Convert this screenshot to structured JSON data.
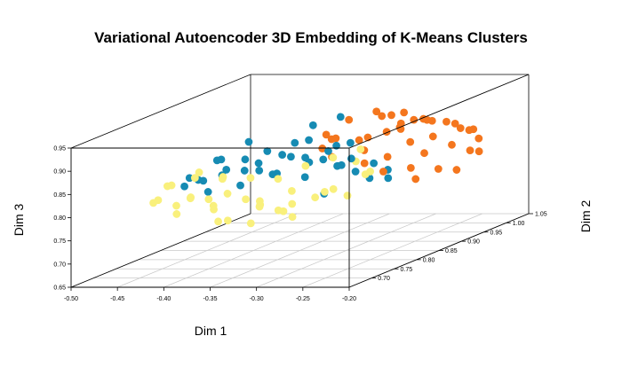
{
  "chart_data": {
    "type": "scatter",
    "title": "Variational Autoencoder 3D Embedding of K-Means Clusters",
    "xlabel": "Dim 1",
    "ylabel": "Dim 2",
    "zlabel": "Dim 3",
    "xlim": [
      -0.5,
      -0.2
    ],
    "ylim": [
      0.65,
      1.05
    ],
    "zlim": [
      0.65,
      0.95
    ],
    "x_ticks": [
      "-0.50",
      "-0.45",
      "-0.40",
      "-0.35",
      "-0.30",
      "-0.25",
      "-0.20"
    ],
    "y_ticks": [
      "0.70",
      "0.75",
      "0.80",
      "0.85",
      "0.90",
      "0.95",
      "1.00",
      "1.05"
    ],
    "z_ticks": [
      "0.65",
      "0.70",
      "0.75",
      "0.80",
      "0.85",
      "0.90",
      "0.95"
    ],
    "grid": true,
    "series": [
      {
        "color": "#F9F07C",
        "points": [
          [
            -0.45,
            0.73,
            0.8
          ],
          [
            -0.44,
            0.72,
            0.81
          ],
          [
            -0.43,
            0.74,
            0.79
          ],
          [
            -0.42,
            0.72,
            0.78
          ],
          [
            -0.41,
            0.73,
            0.81
          ],
          [
            -0.4,
            0.75,
            0.8
          ],
          [
            -0.39,
            0.74,
            0.79
          ],
          [
            -0.38,
            0.72,
            0.79
          ],
          [
            -0.37,
            0.73,
            0.82
          ],
          [
            -0.36,
            0.75,
            0.8
          ],
          [
            -0.35,
            0.76,
            0.78
          ],
          [
            -0.34,
            0.74,
            0.8
          ],
          [
            -0.33,
            0.72,
            0.8
          ],
          [
            -0.32,
            0.77,
            0.81
          ],
          [
            -0.31,
            0.75,
            0.79
          ],
          [
            -0.3,
            0.73,
            0.77
          ],
          [
            -0.29,
            0.76,
            0.8
          ],
          [
            -0.28,
            0.78,
            0.81
          ],
          [
            -0.27,
            0.74,
            0.82
          ],
          [
            -0.26,
            0.77,
            0.8
          ],
          [
            -0.43,
            0.72,
            0.84
          ],
          [
            -0.41,
            0.74,
            0.85
          ],
          [
            -0.39,
            0.76,
            0.84
          ],
          [
            -0.37,
            0.72,
            0.86
          ],
          [
            -0.35,
            0.74,
            0.85
          ],
          [
            -0.33,
            0.76,
            0.84
          ],
          [
            -0.31,
            0.78,
            0.86
          ],
          [
            -0.29,
            0.8,
            0.87
          ],
          [
            -0.27,
            0.82,
            0.88
          ],
          [
            -0.25,
            0.8,
            0.84
          ],
          [
            -0.38,
            0.73,
            0.76
          ],
          [
            -0.36,
            0.71,
            0.77
          ],
          [
            -0.34,
            0.72,
            0.76
          ],
          [
            -0.32,
            0.74,
            0.78
          ],
          [
            -0.3,
            0.71,
            0.79
          ],
          [
            -0.4,
            0.71,
            0.82
          ],
          [
            -0.44,
            0.75,
            0.83
          ],
          [
            -0.42,
            0.77,
            0.85
          ],
          [
            -0.28,
            0.83,
            0.85
          ],
          [
            -0.26,
            0.81,
            0.83
          ]
        ]
      },
      {
        "color": "#F4761E",
        "points": [
          [
            -0.34,
            0.9,
            0.87
          ],
          [
            -0.32,
            0.92,
            0.86
          ],
          [
            -0.3,
            0.94,
            0.87
          ],
          [
            -0.28,
            0.93,
            0.88
          ],
          [
            -0.26,
            0.91,
            0.86
          ],
          [
            -0.24,
            0.9,
            0.84
          ],
          [
            -0.22,
            0.92,
            0.85
          ],
          [
            -0.21,
            0.94,
            0.83
          ],
          [
            -0.23,
            0.96,
            0.87
          ],
          [
            -0.25,
            0.97,
            0.88
          ],
          [
            -0.27,
            0.96,
            0.89
          ],
          [
            -0.29,
            0.98,
            0.88
          ],
          [
            -0.31,
            0.99,
            0.86
          ],
          [
            -0.33,
            0.96,
            0.85
          ],
          [
            -0.35,
            0.93,
            0.86
          ],
          [
            -0.3,
            0.89,
            0.85
          ],
          [
            -0.27,
            0.88,
            0.84
          ],
          [
            -0.24,
            0.87,
            0.82
          ],
          [
            -0.22,
            0.89,
            0.81
          ],
          [
            -0.21,
            0.91,
            0.8
          ],
          [
            -0.28,
            1.0,
            0.87
          ],
          [
            -0.26,
            1.01,
            0.86
          ],
          [
            -0.24,
            1.0,
            0.85
          ],
          [
            -0.22,
            0.98,
            0.84
          ],
          [
            -0.32,
            1.02,
            0.88
          ],
          [
            -0.34,
            1.0,
            0.89
          ],
          [
            -0.36,
            0.98,
            0.88
          ],
          [
            -0.31,
            0.95,
            0.9
          ],
          [
            -0.29,
            0.93,
            0.91
          ],
          [
            -0.27,
            0.91,
            0.9
          ],
          [
            -0.25,
            0.94,
            0.86
          ],
          [
            -0.23,
            0.86,
            0.8
          ],
          [
            -0.26,
            0.85,
            0.82
          ],
          [
            -0.29,
            0.87,
            0.83
          ],
          [
            -0.33,
            0.88,
            0.84
          ],
          [
            -0.35,
            0.9,
            0.85
          ],
          [
            -0.37,
            0.95,
            0.86
          ],
          [
            -0.3,
            1.03,
            0.86
          ],
          [
            -0.25,
            1.03,
            0.84
          ],
          [
            -0.21,
            0.96,
            0.82
          ]
        ]
      },
      {
        "color": "#168BB3",
        "points": [
          [
            -0.46,
            0.82,
            0.8
          ],
          [
            -0.45,
            0.83,
            0.81
          ],
          [
            -0.43,
            0.8,
            0.82
          ],
          [
            -0.42,
            0.79,
            0.8
          ],
          [
            -0.41,
            0.81,
            0.84
          ],
          [
            -0.4,
            0.83,
            0.83
          ],
          [
            -0.39,
            0.8,
            0.81
          ],
          [
            -0.38,
            0.82,
            0.85
          ],
          [
            -0.37,
            0.84,
            0.82
          ],
          [
            -0.36,
            0.81,
            0.83
          ],
          [
            -0.35,
            0.83,
            0.86
          ],
          [
            -0.34,
            0.85,
            0.84
          ],
          [
            -0.33,
            0.82,
            0.82
          ],
          [
            -0.32,
            0.84,
            0.85
          ],
          [
            -0.31,
            0.86,
            0.83
          ],
          [
            -0.3,
            0.83,
            0.84
          ],
          [
            -0.29,
            0.85,
            0.82
          ],
          [
            -0.28,
            0.87,
            0.83
          ],
          [
            -0.27,
            0.84,
            0.81
          ],
          [
            -0.26,
            0.86,
            0.82
          ],
          [
            -0.44,
            0.79,
            0.83
          ],
          [
            -0.42,
            0.81,
            0.86
          ],
          [
            -0.4,
            0.78,
            0.84
          ],
          [
            -0.38,
            0.79,
            0.87
          ],
          [
            -0.36,
            0.78,
            0.85
          ],
          [
            -0.34,
            0.79,
            0.88
          ],
          [
            -0.32,
            0.8,
            0.87
          ],
          [
            -0.3,
            0.81,
            0.88
          ],
          [
            -0.28,
            0.82,
            0.86
          ],
          [
            -0.25,
            0.84,
            0.81
          ],
          [
            -0.39,
            0.86,
            0.86
          ],
          [
            -0.37,
            0.88,
            0.87
          ],
          [
            -0.35,
            0.87,
            0.88
          ],
          [
            -0.33,
            0.89,
            0.86
          ],
          [
            -0.31,
            0.88,
            0.87
          ],
          [
            -0.43,
            0.84,
            0.85
          ],
          [
            -0.41,
            0.86,
            0.88
          ],
          [
            -0.36,
            0.9,
            0.9
          ],
          [
            -0.34,
            0.92,
            0.91
          ],
          [
            -0.29,
            0.78,
            0.8
          ]
        ]
      }
    ]
  }
}
